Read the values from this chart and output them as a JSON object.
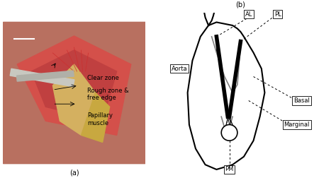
{
  "bg_color": "#f0ede8",
  "photo_color": "#c0605a",
  "labels_left": {
    "Clear zone": [
      0.38,
      0.42
    ],
    "Rough zone &\nfree edge": [
      0.38,
      0.52
    ],
    "Papillary\nmuscle": [
      0.38,
      0.66
    ]
  },
  "label_a": "(a)",
  "label_b": "(b)",
  "aorta_label": "Aorta",
  "al_label": "AL",
  "pl_label": "PL",
  "pm_label": "PM",
  "basal_label": "Basal",
  "marginal_label": "Marginal"
}
